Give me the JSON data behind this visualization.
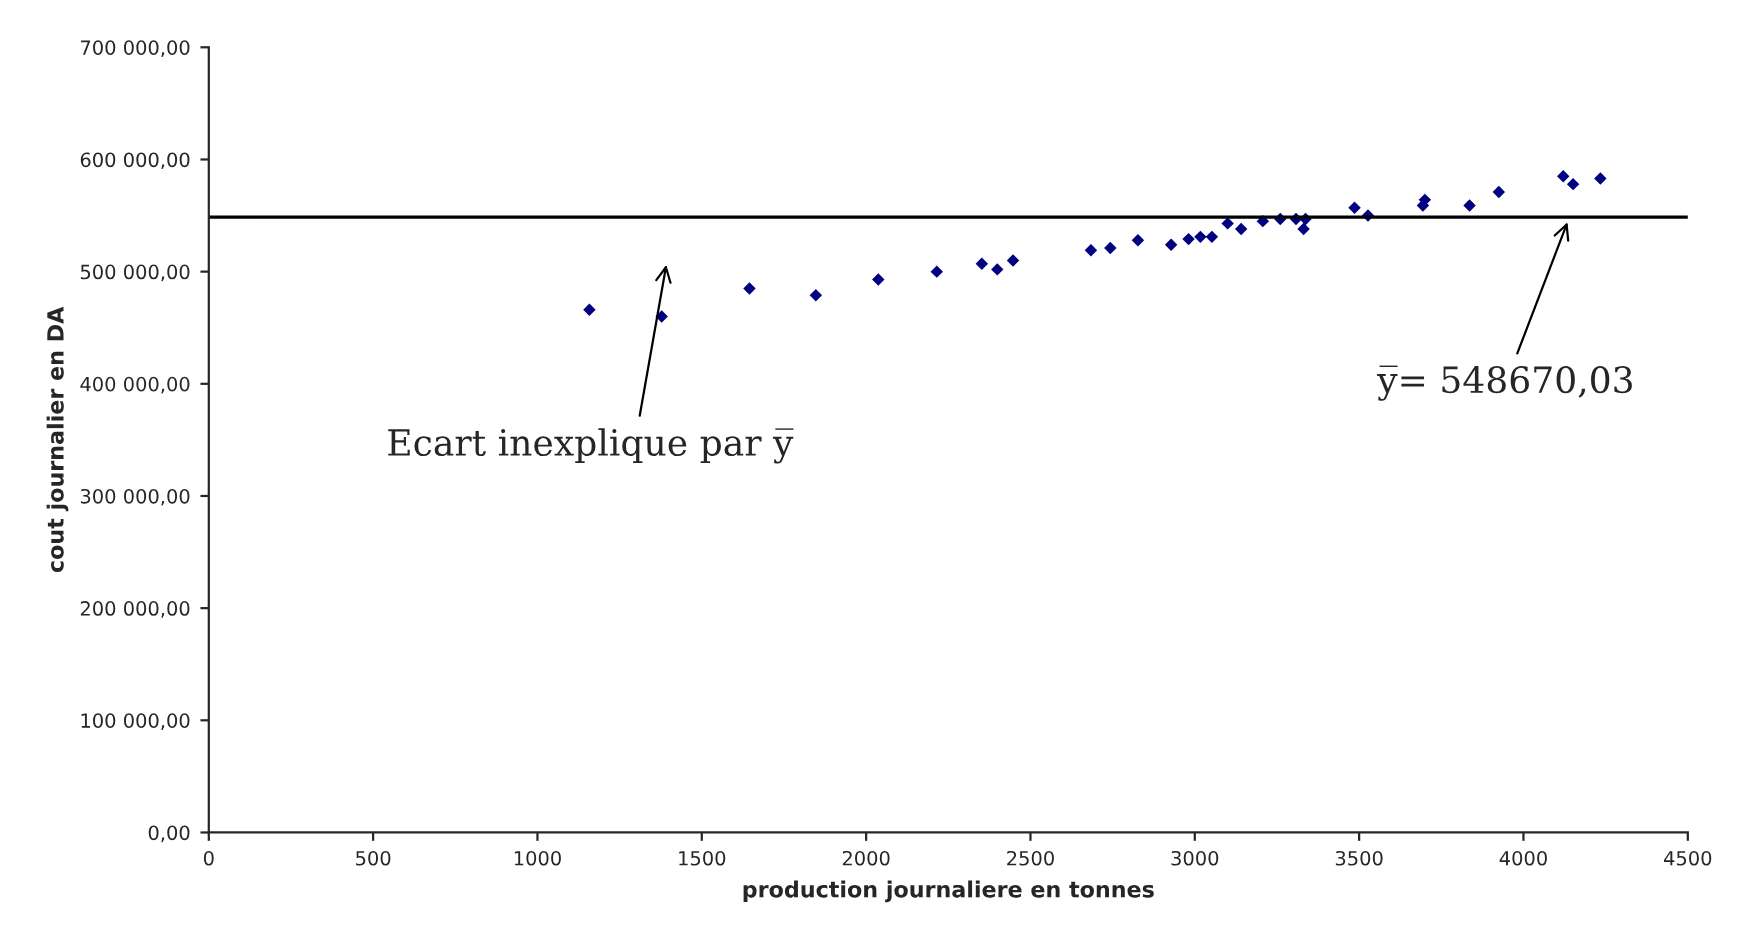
{
  "chart_data": {
    "type": "scatter",
    "xlabel": "production journaliere en tonnes",
    "ylabel": "cout journalier en DA",
    "x": [
      1158,
      1378,
      1645,
      1847,
      2037,
      2215,
      2352,
      2399,
      2447,
      2684,
      2743,
      2827,
      2928,
      2981,
      3017,
      3052,
      3100,
      3141,
      3207,
      3260,
      3308,
      3337,
      3331,
      3486,
      3527,
      3694,
      3700,
      3836,
      3925,
      4121,
      4151,
      4234
    ],
    "series": [
      {
        "color": "#000080",
        "values": [
          466000,
          460000,
          485000,
          479000,
          493000,
          500000,
          507000,
          502000,
          510000,
          519000,
          521000,
          528000,
          524000,
          529000,
          531000,
          531000,
          543000,
          538000,
          545000,
          547000,
          547000,
          547000,
          538000,
          557000,
          550000,
          559000,
          564000,
          559000,
          571000,
          585000,
          578000,
          583000
        ]
      }
    ],
    "marker": "diamond",
    "xlim": [
      0,
      4500
    ],
    "xticks": [
      0,
      500,
      1000,
      1500,
      2000,
      2500,
      3000,
      3500,
      4000,
      4500
    ],
    "ylim": [
      0,
      700000
    ],
    "yticks": [
      {
        "value": 0,
        "label": "0,00"
      },
      {
        "value": 100000,
        "label": "100 000,00"
      },
      {
        "value": 200000,
        "label": "200 000,00"
      },
      {
        "value": 300000,
        "label": "300 000,00"
      },
      {
        "value": 400000,
        "label": "400 000,00"
      },
      {
        "value": 500000,
        "label": "500 000,00"
      },
      {
        "value": 600000,
        "label": "600 000,00"
      },
      {
        "value": 700000,
        "label": "700 000,00"
      }
    ],
    "ref_lines": [
      {
        "axis": "y",
        "value": 548670.03,
        "label": "y̅= 548670,03",
        "color": "#000000",
        "line_style": "solid"
      }
    ],
    "annotations": [
      "Ecart inexplique par y̅"
    ],
    "grid": false,
    "legend": false
  }
}
